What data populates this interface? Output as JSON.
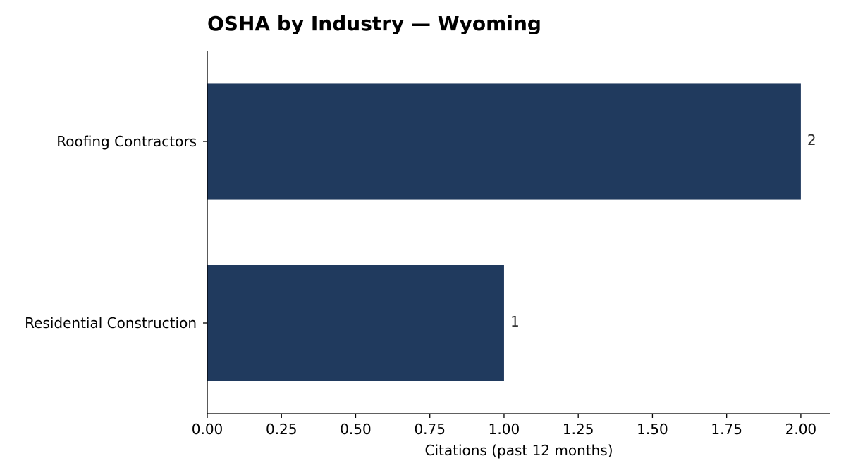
{
  "chart_data": {
    "type": "bar",
    "orientation": "horizontal",
    "title": "OSHA by Industry — Wyoming",
    "xlabel": "Citations (past 12 months)",
    "ylabel": "",
    "categories": [
      "Roofing Contractors",
      "Residential Construction"
    ],
    "values": [
      2,
      1
    ],
    "data_labels": [
      "2",
      "1"
    ],
    "xlim": [
      0,
      2.1
    ],
    "xticks": [
      0.0,
      0.25,
      0.5,
      0.75,
      1.0,
      1.25,
      1.5,
      1.75,
      2.0
    ],
    "xtick_labels": [
      "0.00",
      "0.25",
      "0.50",
      "0.75",
      "1.00",
      "1.25",
      "1.50",
      "1.75",
      "2.00"
    ],
    "grid": false,
    "bar_color": "#203a5e"
  }
}
